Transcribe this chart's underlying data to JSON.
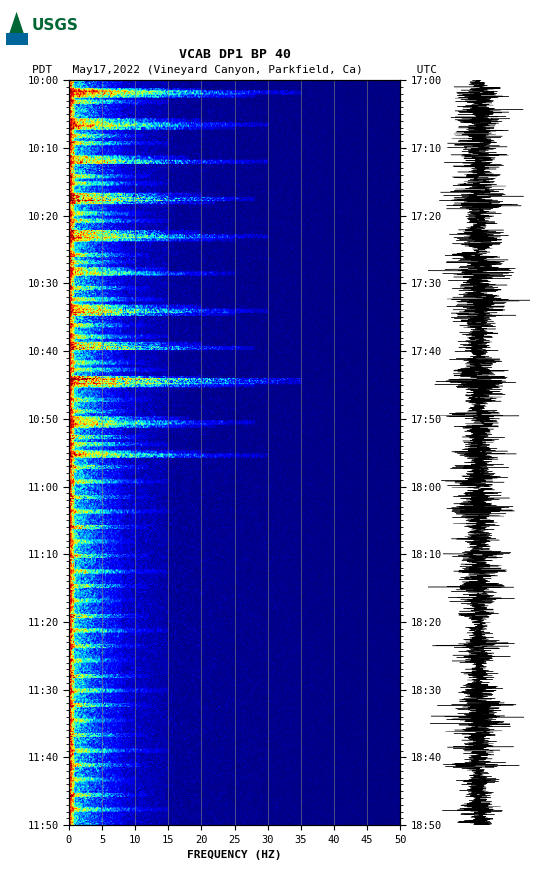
{
  "title_line1": "VCAB DP1 BP 40",
  "title_line2": "PDT   May17,2022 (Vineyard Canyon, Parkfield, Ca)        UTC",
  "left_yticks": [
    "10:00",
    "10:10",
    "10:20",
    "10:30",
    "10:40",
    "10:50",
    "11:00",
    "11:10",
    "11:20",
    "11:30",
    "11:40",
    "11:50"
  ],
  "right_yticks": [
    "17:00",
    "17:10",
    "17:20",
    "17:30",
    "17:40",
    "17:50",
    "18:00",
    "18:10",
    "18:20",
    "18:30",
    "18:40",
    "18:50"
  ],
  "xticks": [
    0,
    5,
    10,
    15,
    20,
    25,
    30,
    35,
    40,
    45,
    50
  ],
  "xlabel": "FREQUENCY (HZ)",
  "xmin": 0,
  "xmax": 50,
  "n_time": 720,
  "n_freq": 500,
  "background_color": "#ffffff",
  "vgrid_color": "#808080",
  "vgrid_alpha": 0.6,
  "colormap": "jet",
  "waveform_color": "#000000",
  "usgs_green": "#006633"
}
